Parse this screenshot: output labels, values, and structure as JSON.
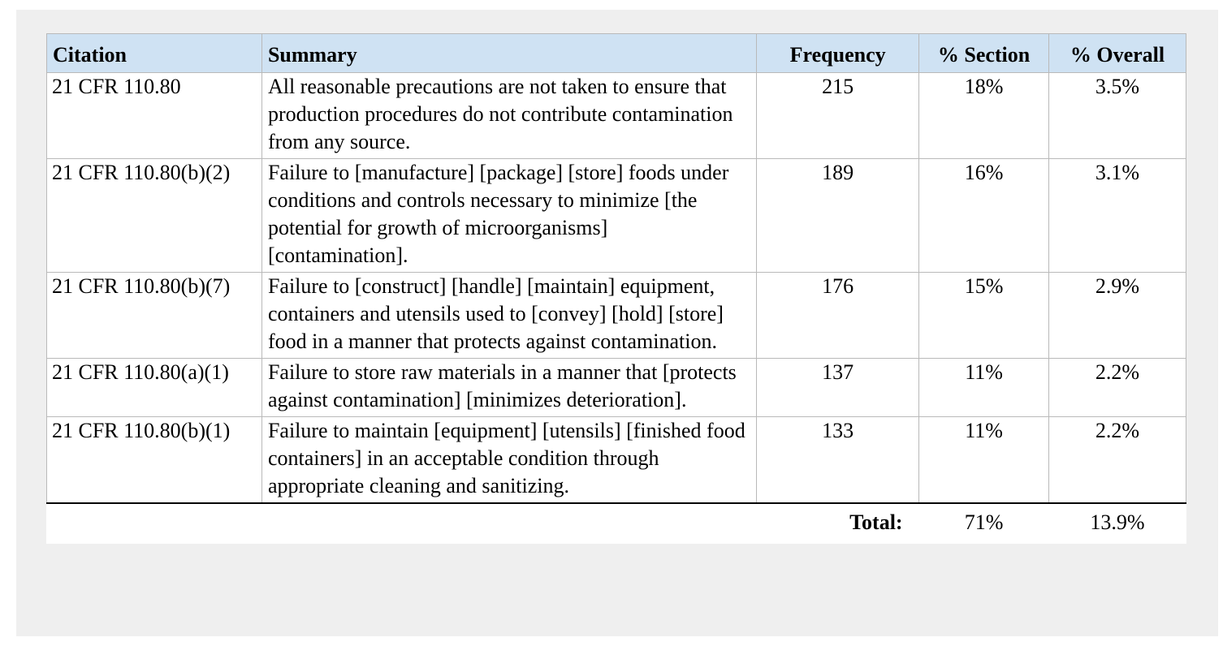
{
  "table": {
    "headers": {
      "citation": "Citation",
      "summary": "Summary",
      "frequency": "Frequency",
      "pct_section": "% Section",
      "pct_overall": "% Overall"
    },
    "rows": [
      {
        "citation": "21 CFR 110.80",
        "summary": "All reasonable precautions are not taken to ensure that production procedures do not contribute contamination from any source.",
        "frequency": "215",
        "pct_section": "18%",
        "pct_overall": "3.5%"
      },
      {
        "citation": "21 CFR 110.80(b)(2)",
        "summary": "Failure to [manufacture] [package] [store] foods under conditions and controls necessary to minimize [the potential for growth of microorganisms] [contamination].",
        "frequency": "189",
        "pct_section": "16%",
        "pct_overall": "3.1%"
      },
      {
        "citation": "21 CFR 110.80(b)(7)",
        "summary": "Failure to [construct] [handle] [maintain] equipment, containers and utensils used to [convey] [hold] [store] food in a manner that protects against contamination.",
        "frequency": "176",
        "pct_section": "15%",
        "pct_overall": "2.9%"
      },
      {
        "citation": "21 CFR 110.80(a)(1)",
        "summary": "Failure to store raw materials in a manner that [protects against contamination] [minimizes deterioration].",
        "frequency": "137",
        "pct_section": "11%",
        "pct_overall": "2.2%"
      },
      {
        "citation": "21 CFR 110.80(b)(1)",
        "summary": "Failure to maintain [equipment] [utensils] [finished food containers] in an acceptable condition through appropriate cleaning and sanitizing.",
        "frequency": "133",
        "pct_section": "11%",
        "pct_overall": "2.2%"
      }
    ],
    "footer": {
      "total_label": "Total:",
      "pct_section": "71%",
      "pct_overall": "13.9%"
    }
  },
  "colors": {
    "header_background": "#cfe2f3",
    "panel_background": "#efefef",
    "border": "#b9b9b9"
  }
}
